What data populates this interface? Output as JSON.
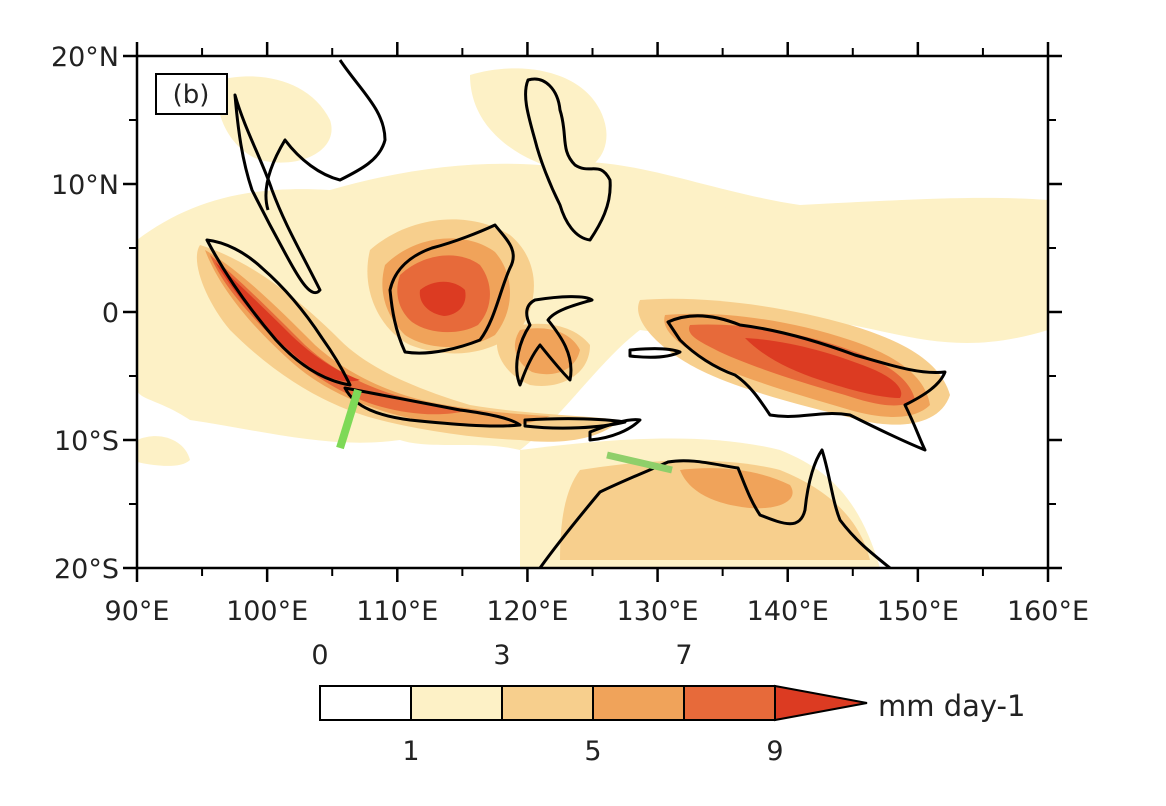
{
  "panel_label": "(b)",
  "map": {
    "lon_range": [
      90,
      160
    ],
    "lat_range": [
      -20,
      20
    ],
    "lon_ticks": [
      {
        "label": "90°E"
      },
      {
        "label": "100°E"
      },
      {
        "label": "110°E"
      },
      {
        "label": "120°E"
      },
      {
        "label": "130°E"
      },
      {
        "label": "140°E"
      },
      {
        "label": "150°E"
      },
      {
        "label": "160°E"
      }
    ],
    "lat_ticks": [
      {
        "label": "20°N"
      },
      {
        "label": "10°N"
      },
      {
        "label": "0"
      },
      {
        "label": "10°S"
      },
      {
        "label": "20°S"
      }
    ],
    "colorbar": {
      "levels_top": [
        "0",
        "3",
        "7"
      ],
      "levels_bottom": [
        "1",
        "5",
        "9"
      ],
      "colors": [
        "#ffffff",
        "#fdf1c6",
        "#f7cf8d",
        "#f0a35a",
        "#e76a3a",
        "#dc3b22"
      ],
      "unit": "mm day-1"
    },
    "line_color": "#7ed957"
  }
}
